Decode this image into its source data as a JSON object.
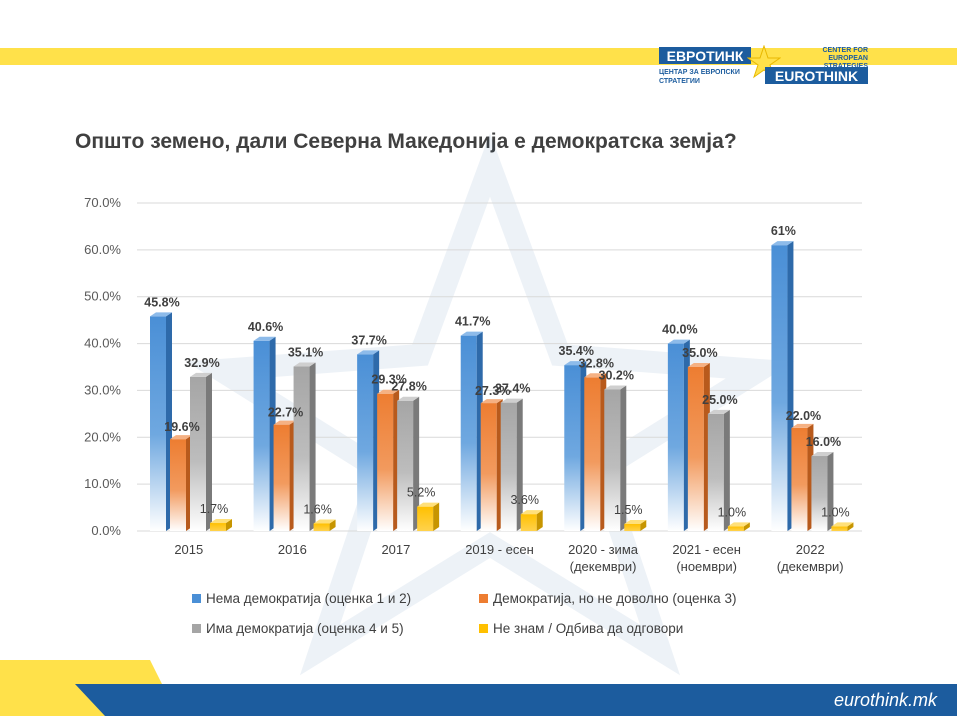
{
  "brand": {
    "logo_mk": "ЕВРОТИНК",
    "logo_mk_sub": "ЦЕНТАР ЗА ЕВРОПСКИ СТРАТЕГИИ",
    "logo_en_sub": "CENTER FOR EUROPEAN STRATEGIES",
    "logo_en": "EUROTHINK",
    "site": "eurothink.mk",
    "accent_yellow": "#ffe14a",
    "accent_blue": "#1c5c9e"
  },
  "title": "Општо земено, дали Северна Македонија е демократска земја?",
  "chart_data": {
    "type": "bar",
    "title": "Општо земено, дали Северна Македонија е демократска земја?",
    "categories": [
      "2015",
      "2016",
      "2017",
      "2019 - есен",
      "2020 - зима (декември)",
      "2021 - есен (ноември)",
      "2022 (декември)"
    ],
    "category_lines": [
      [
        "2015"
      ],
      [
        "2016"
      ],
      [
        "2017"
      ],
      [
        "2019 - есен"
      ],
      [
        "2020 - зима",
        "(декември)"
      ],
      [
        "2021 - есен",
        "(ноември)"
      ],
      [
        "2022",
        "(декември)"
      ]
    ],
    "series": [
      {
        "name": "Нема демократија (оценка 1 и 2)",
        "color": "#4a8fd6",
        "values": [
          45.8,
          40.6,
          37.7,
          41.7,
          35.4,
          40.0,
          61
        ],
        "labels": [
          "45.8%",
          "40.6%",
          "37.7%",
          "41.7%",
          "35.4%",
          "40.0%",
          "61%"
        ]
      },
      {
        "name": "Демократија, но не доволно (оценка 3)",
        "color": "#ed7d31",
        "values": [
          19.6,
          22.7,
          29.3,
          27.3,
          32.8,
          35.0,
          22.0
        ],
        "labels": [
          "19.6%",
          "22.7%",
          "29.3%",
          "27.3%",
          "32.8%",
          "35.0%",
          "22.0%"
        ]
      },
      {
        "name": "Има демократија (оценка 4 и 5)",
        "color": "#a5a5a5",
        "values": [
          32.9,
          35.1,
          27.8,
          27.4,
          30.2,
          25.0,
          16.0
        ],
        "labels": [
          "32.9%",
          "35.1%",
          "27.8%",
          "27.4%",
          "30.2%",
          "25.0%",
          "16.0%"
        ]
      },
      {
        "name": "Не знам / Одбива да одговори",
        "color": "#ffc000",
        "values": [
          1.7,
          1.6,
          5.2,
          3.6,
          1.5,
          1.0,
          1.0
        ],
        "labels": [
          "1.7%",
          "1.6%",
          "5.2%",
          "3.6%",
          "1.5%",
          "1.0%",
          "1.0%"
        ]
      }
    ],
    "ylim": [
      0,
      70
    ],
    "yticks": [
      0,
      10,
      20,
      30,
      40,
      50,
      60,
      70
    ],
    "ytick_labels": [
      "0.0%",
      "10.0%",
      "20.0%",
      "30.0%",
      "40.0%",
      "50.0%",
      "60.0%",
      "70.0%"
    ],
    "grid": true,
    "legend_position": "bottom",
    "xlabel": "",
    "ylabel": ""
  }
}
